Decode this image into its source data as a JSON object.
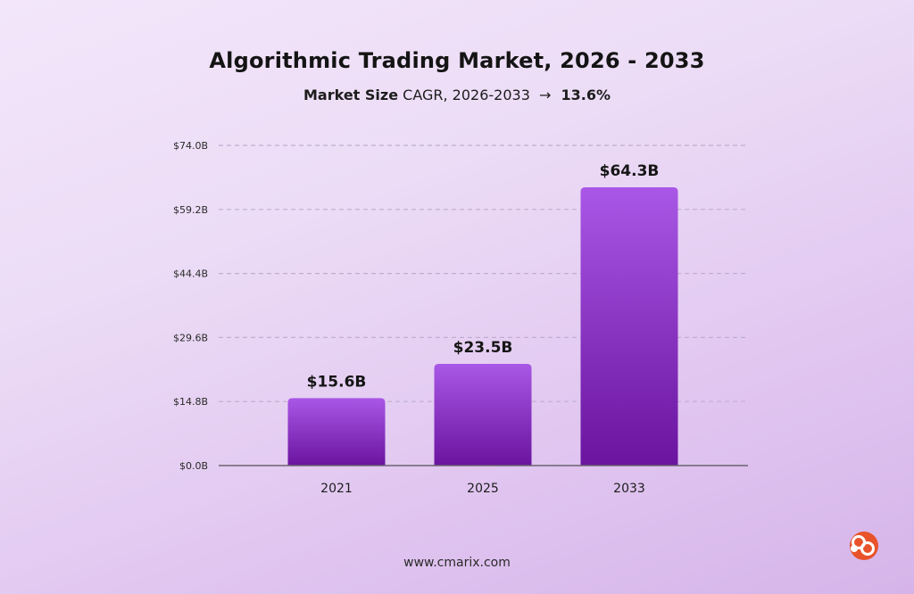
{
  "header": {
    "title": "Algorithmic Trading Market, 2026 - 2033",
    "subtitle_strong": "Market Size",
    "subtitle_text": "CAGR, 2026-2033",
    "subtitle_arrow": "→",
    "subtitle_value": "13.6%"
  },
  "footer": {
    "website": "www.cmarix.com"
  },
  "logo": {
    "icon": "cmarix-logo-icon",
    "color": "#e8532b"
  },
  "colors": {
    "bar_top": "#a957e6",
    "bar_bottom": "#6a149f",
    "grid": "#bfaed0",
    "axis": "#6b6470"
  },
  "chart_data": {
    "type": "bar",
    "title": "Algorithmic Trading Market, 2026 - 2033",
    "subtitle": "Market Size CAGR, 2026-2033 → 13.6%",
    "xlabel": "",
    "ylabel": "",
    "categories": [
      "2021",
      "2025",
      "2033"
    ],
    "values": [
      15.6,
      23.5,
      64.3
    ],
    "value_labels": [
      "$15.6B",
      "$23.5B",
      "$64.3B"
    ],
    "ylim": [
      0,
      74
    ],
    "yticks": [
      0,
      14.8,
      29.6,
      44.4,
      59.2,
      74.0
    ],
    "ytick_labels": [
      "$0.0B",
      "$14.8B",
      "$29.6B",
      "$44.4B",
      "$59.2B",
      "$74.0B"
    ],
    "grid": true,
    "legend": "none"
  }
}
